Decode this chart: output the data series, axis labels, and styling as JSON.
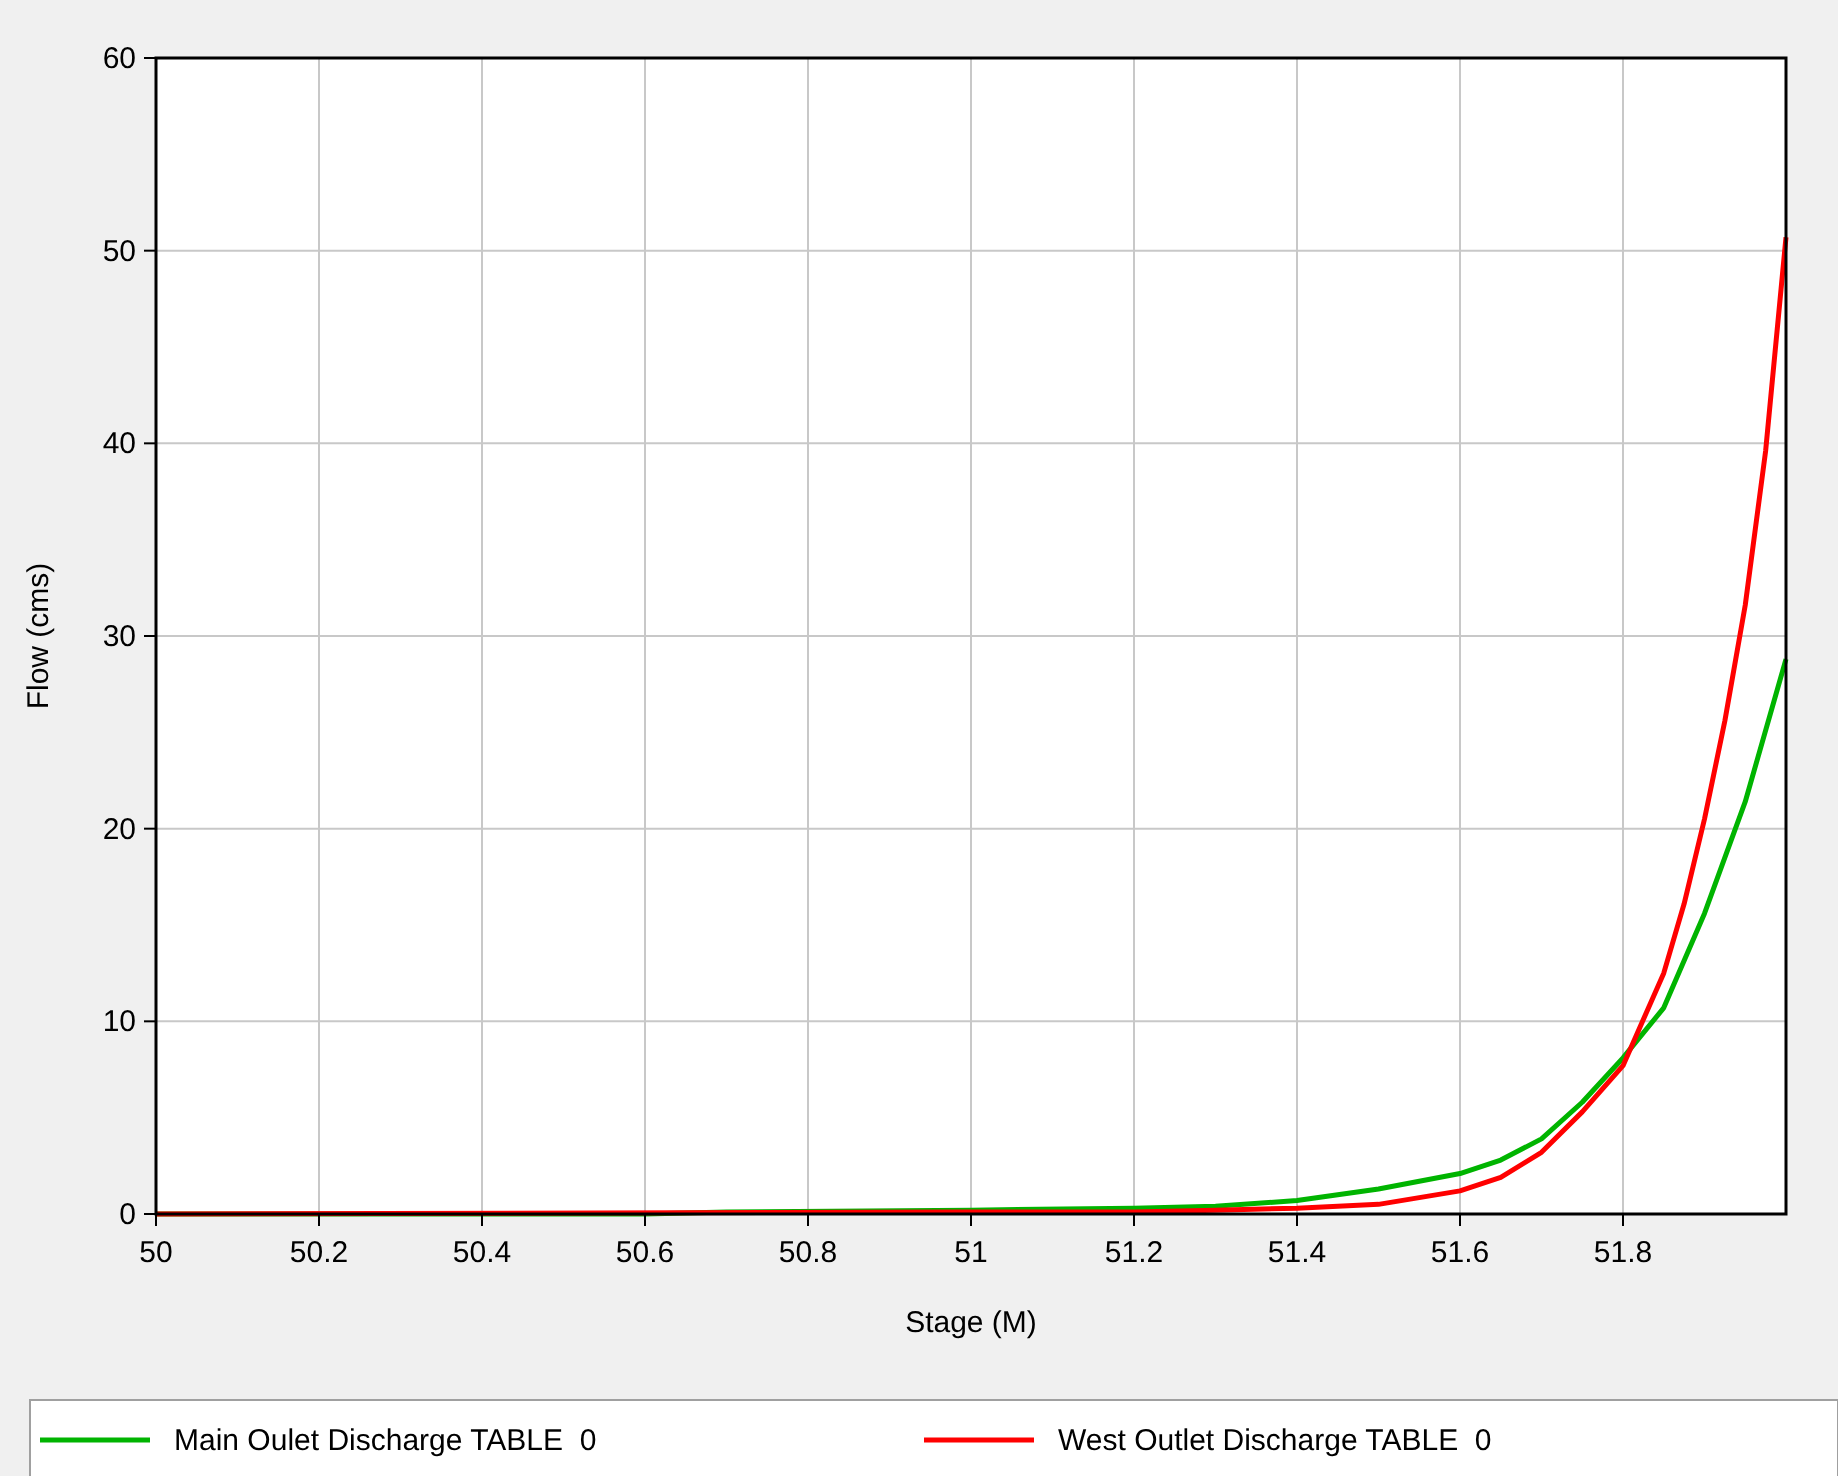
{
  "chart_data": {
    "type": "line",
    "xlabel": "Stage (M)",
    "ylabel": "Flow (cms)",
    "xlim": [
      50,
      52
    ],
    "ylim": [
      0,
      60
    ],
    "xticks": [
      50,
      50.2,
      50.4,
      50.6,
      50.8,
      51,
      51.2,
      51.4,
      51.6,
      51.8
    ],
    "yticks": [
      0,
      10,
      20,
      30,
      40,
      50,
      60
    ],
    "grid": true,
    "legend": "bottom",
    "line_style": "solid",
    "marker": "none",
    "series": [
      {
        "name": "Main Oulet Discharge TABLE  0",
        "color": "#00b400",
        "x": [
          50,
          50.6,
          50.7,
          51,
          51.2,
          51.3,
          51.4,
          51.5,
          51.6,
          51.65,
          51.7,
          51.75,
          51.8,
          51.85,
          51.9,
          51.95,
          52
        ],
        "values": [
          0,
          0,
          0.1,
          0.2,
          0.3,
          0.4,
          0.7,
          1.3,
          2.1,
          2.8,
          3.9,
          5.8,
          8.1,
          10.7,
          15.6,
          21.4,
          28.8
        ]
      },
      {
        "name": "West Outlet Discharge TABLE  0",
        "color": "#ff0000",
        "x": [
          50,
          51,
          51.2,
          51.3,
          51.4,
          51.5,
          51.6,
          51.65,
          51.7,
          51.75,
          51.8,
          51.85,
          51.875,
          51.9,
          51.925,
          51.95,
          51.975,
          52
        ],
        "values": [
          0,
          0.1,
          0.1,
          0.2,
          0.3,
          0.5,
          1.2,
          1.9,
          3.2,
          5.3,
          7.7,
          12.5,
          16.1,
          20.5,
          25.6,
          31.6,
          39.6,
          50.7
        ]
      }
    ]
  }
}
